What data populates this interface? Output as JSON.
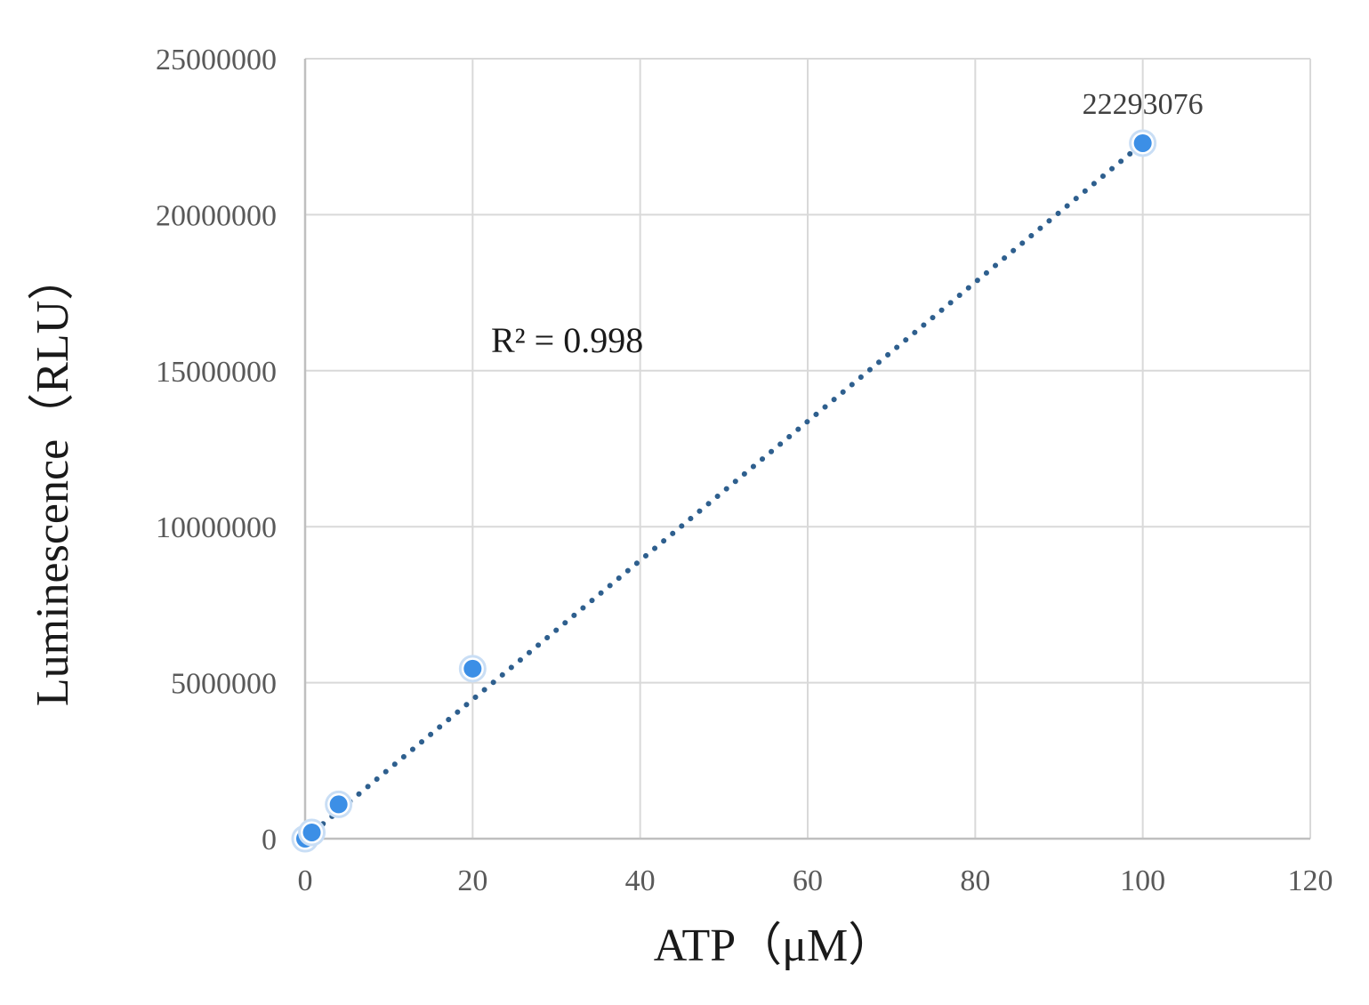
{
  "chart_data": {
    "type": "scatter",
    "title": "",
    "xlabel": "ATP（μM）",
    "ylabel": "Luminescence（RLU）",
    "xlim": [
      0,
      120
    ],
    "ylim": [
      0,
      25000000
    ],
    "x_ticks": [
      0,
      20,
      40,
      60,
      80,
      100,
      120
    ],
    "y_ticks": [
      0,
      5000000,
      10000000,
      15000000,
      20000000,
      25000000
    ],
    "x_tick_labels": [
      "0",
      "20",
      "40",
      "60",
      "80",
      "100",
      "120"
    ],
    "y_tick_labels": [
      "0",
      "5000000",
      "10000000",
      "15000000",
      "20000000",
      "25000000"
    ],
    "grid": true,
    "legend": "none",
    "series": [
      {
        "x": [
          0,
          0.8,
          4,
          20,
          100
        ],
        "y": [
          0,
          200000,
          1100000,
          5450000,
          22293076
        ],
        "color": "#3c8fe6"
      }
    ],
    "trendline": {
      "type": "linear",
      "style": "dotted",
      "color": "#2e5f8e",
      "x_range": [
        0,
        100
      ],
      "y_range": [
        0,
        22293076
      ]
    },
    "data_labels": [
      {
        "x": 100,
        "y": 22293076,
        "text": "22293076"
      }
    ],
    "annotations": [
      {
        "text": "R² = 0.998"
      }
    ]
  }
}
